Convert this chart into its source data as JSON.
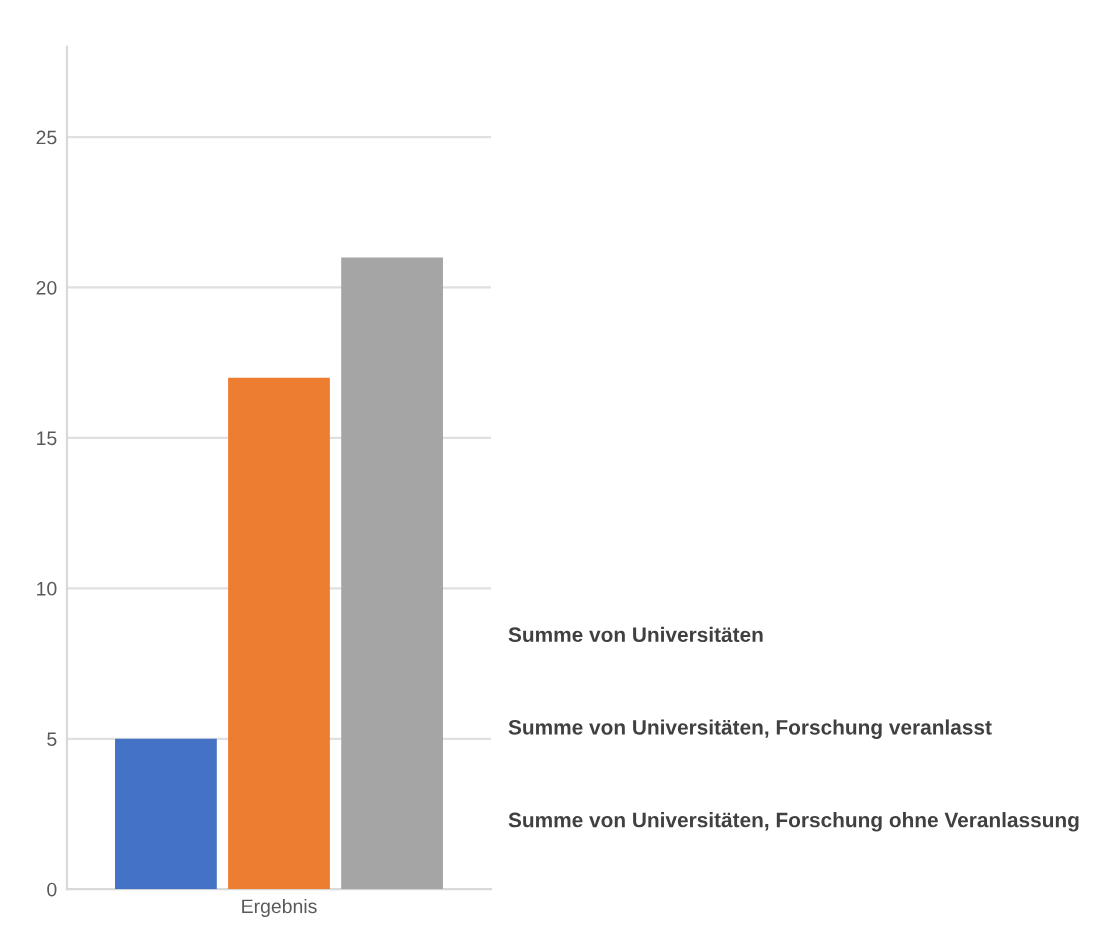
{
  "chart_data": {
    "type": "bar",
    "categories": [
      "Ergebnis"
    ],
    "series": [
      {
        "name": "Summe von Universitäten, Forschung ohne Veranlassung",
        "color": "#4472c4",
        "values": [
          5
        ]
      },
      {
        "name": "Summe von Universitäten, Forschung veranlasst",
        "color": "#ed7d31",
        "values": [
          17
        ]
      },
      {
        "name": "Summe von Universitäten",
        "color": "#a5a5a5",
        "values": [
          21
        ]
      }
    ],
    "ylim": [
      0,
      28
    ],
    "yticks": [
      0,
      5,
      10,
      15,
      20,
      25
    ],
    "grid": "y",
    "legend": "right"
  }
}
